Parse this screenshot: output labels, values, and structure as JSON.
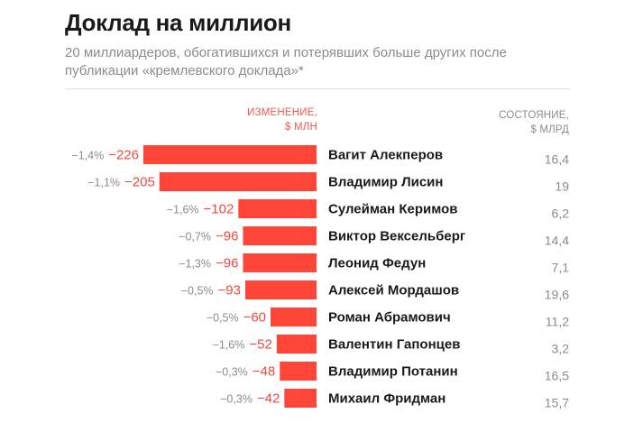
{
  "title": "Доклад на миллион",
  "subtitle": "20 миллиардеров, обогатившихся и потерявших больше других после публикации «кремлевского доклада»*",
  "colors": {
    "bar": "#ff4538",
    "value": "#f04a3f",
    "muted": "#8c8c8c",
    "text": "#1a1a1a"
  },
  "chart_data": {
    "type": "bar",
    "orientation": "horizontal",
    "title": "Доклад на миллион",
    "subtitle": "20 миллиардеров, обогатившихся и потерявших больше других после публикации «кремлевского доклада»*",
    "change_header": [
      "ИЗМЕНЕНИЕ,",
      "$ МЛН"
    ],
    "state_header": [
      "СОСТОЯНИЕ,",
      "$ МЛРД"
    ],
    "categories": [
      "Вагит Алекперов",
      "Владимир Лисин",
      "Сулейман Керимов",
      "Виктор Вексельберг",
      "Леонид Федун",
      "Алексей Мордашов",
      "Роман Абрамович",
      "Валентин Гапонцев",
      "Владимир Потанин",
      "Михаил Фридман"
    ],
    "series": [
      {
        "name": "ИЗМЕНЕНИЕ, $ МЛН",
        "values": [
          -226,
          -205,
          -102,
          -96,
          -96,
          -93,
          -60,
          -52,
          -48,
          -42
        ]
      }
    ],
    "change_labels": [
      "−226",
      "−205",
      "−102",
      "−96",
      "−96",
      "−93",
      "−60",
      "−52",
      "−48",
      "−42"
    ],
    "percent_labels": [
      "−1,4%",
      "−1,1%",
      "−1,6%",
      "−0,7%",
      "−1,3%",
      "−0,5%",
      "−0,5%",
      "−1,6%",
      "−0,3%",
      "−0,3%"
    ],
    "state_labels": [
      "16,4",
      "19",
      "6,2",
      "14,4",
      "7,1",
      "19,6",
      "11,2",
      "3,2",
      "16,5",
      "15,7"
    ],
    "xlim": [
      -226,
      0
    ]
  }
}
